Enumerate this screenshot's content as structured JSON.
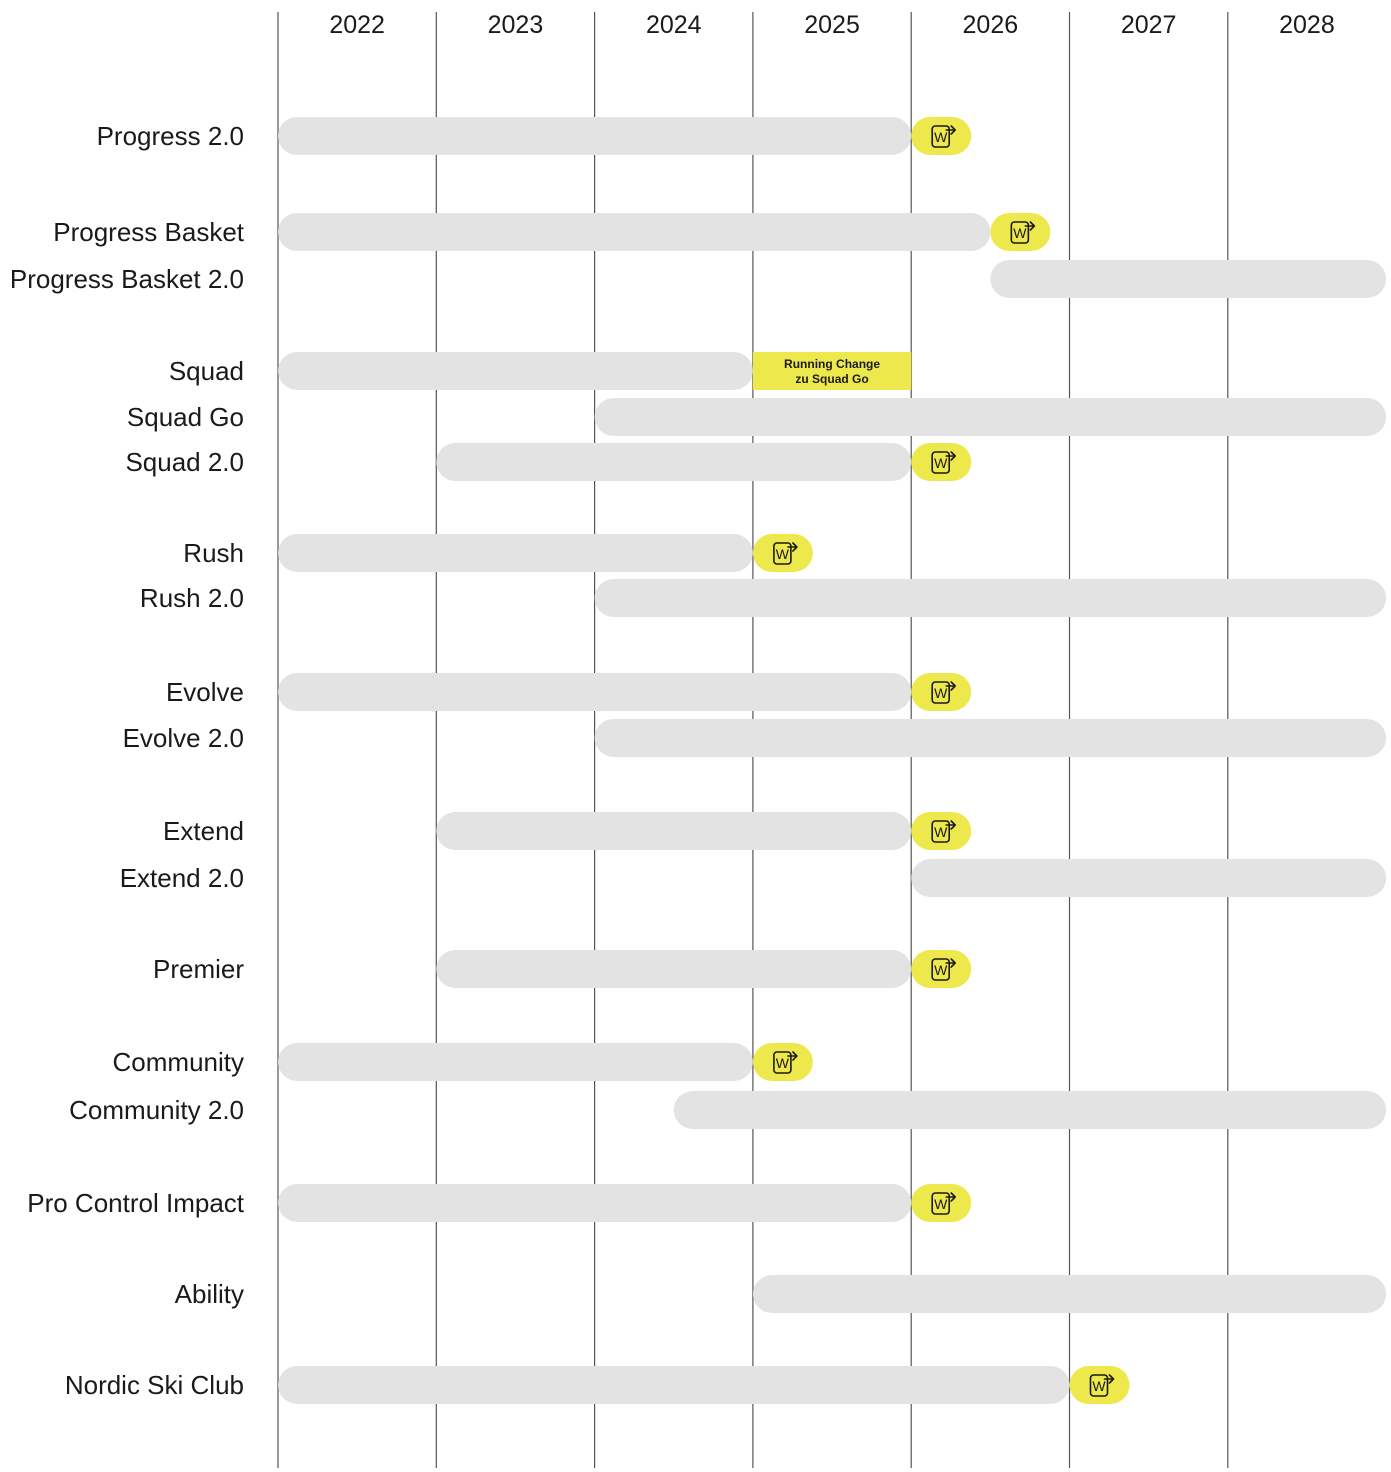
{
  "chart_data": {
    "type": "gantt",
    "x_axis": {
      "unit": "year",
      "range": [
        2022,
        2029
      ],
      "ticks": [
        "2022",
        "2023",
        "2024",
        "2025",
        "2026",
        "2027",
        "2028"
      ],
      "position": "top"
    },
    "grid": true,
    "legend": "none",
    "colors": {
      "bar": "#e3e3e3",
      "accent": "#ede84c",
      "grid": "#555555",
      "text": "#1a1a1a"
    },
    "icon": "withdrawal-arrow-icon",
    "icon_letter": "W",
    "rows": [
      {
        "label": "Progress  2.0",
        "start": 2022.0,
        "end": 2026.0,
        "marker": 2026.0
      },
      {
        "label": "Progress Basket",
        "start": 2022.0,
        "end": 2026.5,
        "marker": 2026.5
      },
      {
        "label": "Progress Basket 2.0",
        "start": 2026.5,
        "end": 2029.0
      },
      {
        "label": "Squad",
        "start": 2022.0,
        "end": 2025.0,
        "note": {
          "lines": [
            "Running Change",
            "zu Squad Go"
          ],
          "start": 2025.0,
          "end": 2026.0
        }
      },
      {
        "label": "Squad Go",
        "start": 2024.0,
        "end": 2029.0
      },
      {
        "label": "Squad 2.0",
        "start": 2023.0,
        "end": 2026.0,
        "marker": 2026.0
      },
      {
        "label": "Rush",
        "start": 2022.0,
        "end": 2025.0,
        "marker": 2025.0
      },
      {
        "label": "Rush 2.0",
        "start": 2024.0,
        "end": 2029.0
      },
      {
        "label": "Evolve",
        "start": 2022.0,
        "end": 2026.0,
        "marker": 2026.0
      },
      {
        "label": "Evolve 2.0",
        "start": 2024.0,
        "end": 2029.0
      },
      {
        "label": "Extend",
        "start": 2023.0,
        "end": 2026.0,
        "marker": 2026.0
      },
      {
        "label": "Extend 2.0",
        "start": 2026.0,
        "end": 2029.0
      },
      {
        "label": "Premier",
        "start": 2023.0,
        "end": 2026.0,
        "marker": 2026.0
      },
      {
        "label": "Community",
        "start": 2022.0,
        "end": 2025.0,
        "marker": 2025.0
      },
      {
        "label": "Community 2.0",
        "start": 2024.5,
        "end": 2029.0
      },
      {
        "label": "Pro Control Impact",
        "start": 2022.0,
        "end": 2026.0,
        "marker": 2026.0
      },
      {
        "label": "Ability",
        "start": 2025.0,
        "end": 2029.0
      },
      {
        "label": "Nordic Ski Club",
        "start": 2022.0,
        "end": 2027.0,
        "marker": 2027.0
      }
    ]
  }
}
